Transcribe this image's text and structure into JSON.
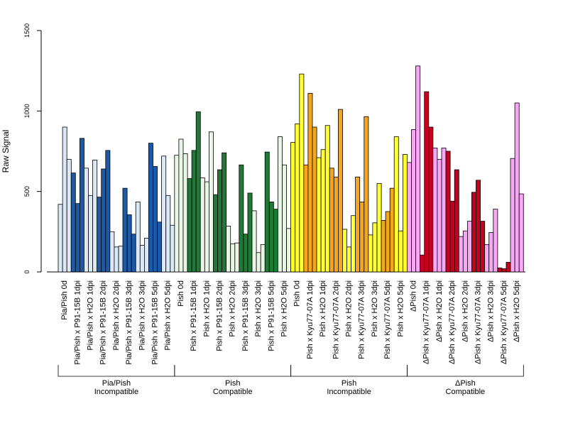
{
  "chart_data": {
    "type": "bar",
    "ylabel": "Raw Signal",
    "ylim": [
      0,
      1500
    ],
    "yticks": [
      0,
      500,
      1000,
      1500
    ],
    "categories": [
      "Pia/Pish 0d",
      "Pia/Pish x P91-15B 1dpi",
      "Pia/Pish x H2O 1dpi",
      "Pia/Pish x P91-15B 2dpi",
      "Pia/Pish x H2O 2dpi",
      "Pia/Pish x P91-15B 3dpi",
      "Pia/Pish x H2O 3dpi",
      "Pia/Pish x P91-15B 5dpi",
      "Pia/Pish x H2O 5dpi",
      "Pish 0d",
      "Pish x P91-15B 1dpi",
      "Pish x H2O 1dpi",
      "Pish x P91-15B 2dpi",
      "Pish x H2O 2dpi",
      "Pish x P91-15B 3dpi",
      "Pish x H2O 3dpi",
      "Pish x P91-15B 5dpi",
      "Pish x H2O 5dpi",
      "Pish 0d",
      "Pish x Kyu77-07A 1dpi",
      "Pish x H2O 1dpi",
      "Pish x Kyu77-07A 2dpi",
      "Pish x H2O 2dpi",
      "Pish x Kyu77-07A 3dpi",
      "Pish x H2O 3dpi",
      "Pish x Kyu77-07A 5dpi",
      "Pish x H2O 5dpi",
      "ΔPish 0d",
      "ΔPish x Kyu77-07A 1dpi",
      "ΔPish x H2O 1dpi",
      "ΔPish x Kyu77-07A 2dpi",
      "ΔPish x H2O 2dpi",
      "ΔPish x Kyu77-07A 3dpi",
      "ΔPish x H2O 3dpi",
      "ΔPish x Kyu77-07A 5dpi",
      "ΔPish x H2O 5dpi"
    ],
    "replicates": 3,
    "values": [
      [
        420,
        900,
        700
      ],
      [
        615,
        425,
        830
      ],
      [
        645,
        475,
        695
      ],
      [
        465,
        640,
        755
      ],
      [
        250,
        155,
        160
      ],
      [
        520,
        355,
        235
      ],
      [
        435,
        165,
        210
      ],
      [
        800,
        655,
        310
      ],
      [
        720,
        475,
        290
      ],
      [
        725,
        825,
        735
      ],
      [
        580,
        755,
        995
      ],
      [
        585,
        560,
        870
      ],
      [
        480,
        635,
        740
      ],
      [
        285,
        175,
        180
      ],
      [
        665,
        235,
        490
      ],
      [
        380,
        120,
        170
      ],
      [
        745,
        435,
        390
      ],
      [
        840,
        665,
        270
      ],
      [
        805,
        920,
        1230
      ],
      [
        665,
        1110,
        900
      ],
      [
        710,
        760,
        910
      ],
      [
        645,
        590,
        1010
      ],
      [
        265,
        155,
        350
      ],
      [
        590,
        435,
        965
      ],
      [
        230,
        305,
        550
      ],
      [
        320,
        375,
        520
      ],
      [
        840,
        255,
        730
      ],
      [
        680,
        885,
        1280
      ],
      [
        105,
        1120,
        900
      ],
      [
        770,
        700,
        770
      ],
      [
        750,
        440,
        635
      ],
      [
        220,
        255,
        315
      ],
      [
        495,
        570,
        315
      ],
      [
        170,
        245,
        390
      ],
      [
        25,
        20,
        60
      ],
      [
        705,
        1050,
        485
      ]
    ],
    "colors": {
      "control_light": "#dde8f7",
      "pia_dark": "#1b5aa8",
      "pish_compat_light": "#e9f6e6",
      "pish_compat_dark": "#1f7a35",
      "pish_incompat_light": "#ffff33",
      "pish_incompat_dark": "#f5a61a",
      "dpish_light": "#f7a8f5",
      "dpish_dark": "#c8001f"
    },
    "bar_color_keys": [
      "control_light",
      "pia_dark",
      "control_light",
      "pia_dark",
      "control_light",
      "pia_dark",
      "control_light",
      "pia_dark",
      "control_light",
      "pish_compat_light",
      "pish_compat_dark",
      "pish_compat_light",
      "pish_compat_dark",
      "pish_compat_light",
      "pish_compat_dark",
      "pish_compat_light",
      "pish_compat_dark",
      "pish_compat_light",
      "pish_incompat_light",
      "pish_incompat_dark",
      "pish_incompat_light",
      "pish_incompat_dark",
      "pish_incompat_light",
      "pish_incompat_dark",
      "pish_incompat_light",
      "pish_incompat_dark",
      "pish_incompat_light",
      "dpish_light",
      "dpish_dark",
      "dpish_light",
      "dpish_dark",
      "dpish_light",
      "dpish_dark",
      "dpish_light",
      "dpish_dark",
      "dpish_light"
    ],
    "groups": [
      {
        "line1": "Pia/Pish",
        "line2": "Incompatible",
        "start": 0,
        "end": 8
      },
      {
        "line1": "Pish",
        "line2": "Compatible",
        "start": 9,
        "end": 17
      },
      {
        "line1": "Pish",
        "line2": "Incompatible",
        "start": 18,
        "end": 26
      },
      {
        "line1": "ΔPish",
        "line2": "Compatible",
        "start": 27,
        "end": 35
      }
    ],
    "grid": false,
    "legend": "none"
  }
}
